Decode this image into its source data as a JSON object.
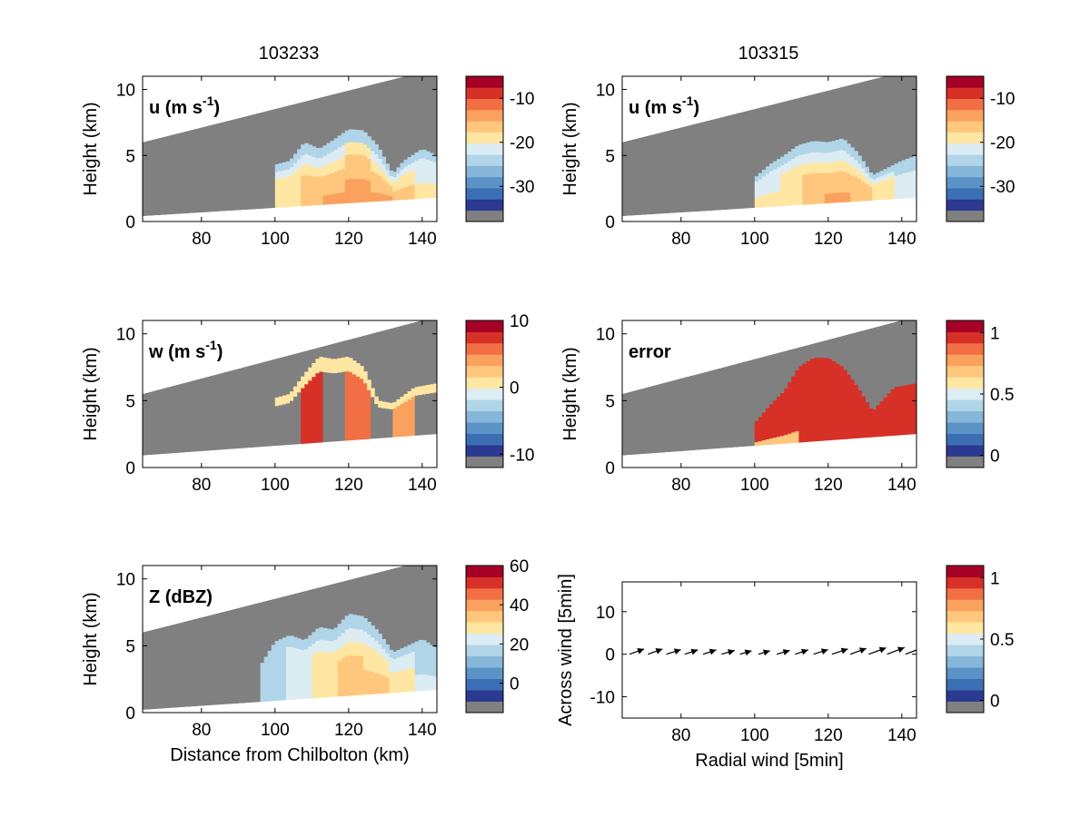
{
  "colors": {
    "panel_bg": "#ffffff",
    "no_data": "#808080",
    "palette": [
      "#2b3990",
      "#3c6eb4",
      "#5b93c7",
      "#86b6d9",
      "#b0d5e8",
      "#dcecf3",
      "#ffe7a3",
      "#fec77d",
      "#fba15e",
      "#f26f45",
      "#d73027",
      "#a50026"
    ]
  },
  "chart_data": [
    {
      "id": "u-103233",
      "type": "heatmap",
      "title": "103233",
      "panel_label": "u (m s-1)",
      "panel_label_base": "u (m s",
      "panel_label_sup": "-1",
      "panel_label_tail": ")",
      "xlabel": "",
      "ylabel": "Height (km)",
      "xlim": [
        64,
        144
      ],
      "ylim": [
        0,
        11
      ],
      "xticks": [
        "80",
        "100",
        "120",
        "140"
      ],
      "yticks": [
        "0",
        "5",
        "10"
      ],
      "colorbar": {
        "range": [
          -38,
          -5
        ],
        "ticks": [
          "-10",
          "-20",
          "-30"
        ]
      },
      "beam_top_km": [
        [
          64,
          6.0
        ],
        [
          144,
          11.6
        ]
      ],
      "beam_bottom_km": [
        [
          64,
          0.4
        ],
        [
          144,
          1.8
        ]
      ],
      "echo_top_km": [
        [
          100,
          4.3
        ],
        [
          104,
          4.6
        ],
        [
          108,
          6.0
        ],
        [
          112,
          5.5
        ],
        [
          116,
          6.2
        ],
        [
          120,
          7.0
        ],
        [
          124,
          6.9
        ],
        [
          128,
          5.7
        ],
        [
          132,
          3.6
        ],
        [
          135,
          4.6
        ],
        [
          140,
          5.5
        ],
        [
          144,
          5.0
        ]
      ],
      "core_values": [
        -18,
        -16,
        -15,
        -14,
        -15,
        -17,
        -20
      ]
    },
    {
      "id": "u-103315",
      "type": "heatmap",
      "title": "103315",
      "panel_label": "u (m s-1)",
      "panel_label_base": "u (m s",
      "panel_label_sup": "-1",
      "panel_label_tail": ")",
      "xlabel": "",
      "ylabel": "Height (km)",
      "xlim": [
        64,
        144
      ],
      "ylim": [
        0,
        11
      ],
      "xticks": [
        "80",
        "100",
        "120",
        "140"
      ],
      "yticks": [
        "0",
        "5",
        "10"
      ],
      "colorbar": {
        "range": [
          -38,
          -5
        ],
        "ticks": [
          "-10",
          "-20",
          "-30"
        ]
      },
      "beam_top_km": [
        [
          64,
          6.0
        ],
        [
          144,
          11.6
        ]
      ],
      "beam_bottom_km": [
        [
          64,
          0.4
        ],
        [
          144,
          1.8
        ]
      ],
      "echo_top_km": [
        [
          100,
          3.3
        ],
        [
          104,
          4.3
        ],
        [
          108,
          5.0
        ],
        [
          112,
          5.8
        ],
        [
          116,
          6.1
        ],
        [
          120,
          6.0
        ],
        [
          124,
          6.3
        ],
        [
          128,
          5.2
        ],
        [
          132,
          3.5
        ],
        [
          135,
          3.9
        ],
        [
          140,
          4.6
        ],
        [
          144,
          5.0
        ]
      ],
      "core_values": [
        -20,
        -18,
        -16,
        -15,
        -16,
        -18,
        -21
      ]
    },
    {
      "id": "w-103233",
      "type": "heatmap",
      "panel_label": "w (m s-1)",
      "panel_label_base": "w (m s",
      "panel_label_sup": "-1",
      "panel_label_tail": ")",
      "xlabel": "",
      "ylabel": "Height (km)",
      "xlim": [
        64,
        144
      ],
      "ylim": [
        0,
        11
      ],
      "xticks": [
        "80",
        "100",
        "120",
        "140"
      ],
      "yticks": [
        "0",
        "5",
        "10"
      ],
      "colorbar": {
        "range": [
          -12,
          10
        ],
        "ticks": [
          "10",
          "0",
          "-10"
        ]
      },
      "beam_top_km": [
        [
          64,
          5.5
        ],
        [
          144,
          11.3
        ]
      ],
      "beam_bottom_km": [
        [
          64,
          0.9
        ],
        [
          144,
          2.5
        ]
      ],
      "echo_top_km": [
        [
          100,
          5.2
        ],
        [
          104,
          5.5
        ],
        [
          108,
          7.0
        ],
        [
          112,
          8.3
        ],
        [
          116,
          8.1
        ],
        [
          120,
          8.3
        ],
        [
          124,
          7.5
        ],
        [
          128,
          5.0
        ],
        [
          132,
          4.8
        ],
        [
          138,
          6.0
        ],
        [
          144,
          6.3
        ]
      ],
      "core_values": [
        -12,
        8,
        -12,
        6,
        -12,
        4,
        -12
      ]
    },
    {
      "id": "error-panel",
      "type": "heatmap",
      "panel_label": "error",
      "xlabel": "",
      "ylabel": "Height (km)",
      "xlim": [
        64,
        144
      ],
      "ylim": [
        0,
        11
      ],
      "xticks": [
        "80",
        "100",
        "120",
        "140"
      ],
      "yticks": [
        "0",
        "5",
        "10"
      ],
      "colorbar": {
        "range": [
          -0.1,
          1.1
        ],
        "ticks": [
          "1",
          "0.5",
          "0"
        ]
      },
      "beam_top_km": [
        [
          64,
          5.5
        ],
        [
          144,
          11.3
        ]
      ],
      "beam_bottom_km": [
        [
          64,
          0.9
        ],
        [
          144,
          2.5
        ]
      ],
      "echo_top_km": [
        [
          100,
          3.3
        ],
        [
          104,
          4.6
        ],
        [
          108,
          5.7
        ],
        [
          112,
          7.5
        ],
        [
          116,
          8.2
        ],
        [
          120,
          8.2
        ],
        [
          124,
          7.5
        ],
        [
          128,
          6.0
        ],
        [
          132,
          4.2
        ],
        [
          138,
          6.0
        ],
        [
          144,
          6.3
        ]
      ],
      "core_values": [
        1,
        1,
        1,
        1,
        1,
        1,
        1
      ]
    },
    {
      "id": "z-103233",
      "type": "heatmap",
      "panel_label": "Z (dBZ)",
      "xlabel": "Distance from Chilbolton (km)",
      "ylabel": "Height (km)",
      "xlim": [
        64,
        144
      ],
      "ylim": [
        0,
        11
      ],
      "xticks": [
        "80",
        "100",
        "120",
        "140"
      ],
      "yticks": [
        "0",
        "5",
        "10"
      ],
      "colorbar": {
        "range": [
          -15,
          60
        ],
        "ticks": [
          "60",
          "40",
          "20",
          "0"
        ]
      },
      "beam_top_km": [
        [
          64,
          6.0
        ],
        [
          144,
          11.6
        ]
      ],
      "beam_bottom_km": [
        [
          64,
          0.2
        ],
        [
          144,
          1.7
        ]
      ],
      "echo_top_km": [
        [
          96,
          3.5
        ],
        [
          100,
          5.3
        ],
        [
          104,
          5.8
        ],
        [
          108,
          5.4
        ],
        [
          112,
          6.4
        ],
        [
          116,
          6.2
        ],
        [
          120,
          7.4
        ],
        [
          124,
          7.2
        ],
        [
          128,
          6.1
        ],
        [
          132,
          4.5
        ],
        [
          136,
          5.0
        ],
        [
          140,
          5.5
        ],
        [
          144,
          4.8
        ]
      ],
      "core_values": [
        18,
        25,
        30,
        34,
        32,
        28,
        20
      ]
    },
    {
      "id": "wind-vectors",
      "type": "quiver",
      "xlabel": "Radial wind [5min]",
      "ylabel": "Across wind [5min]",
      "xlim": [
        64,
        144
      ],
      "ylim": [
        -15,
        17
      ],
      "xticks": [
        "80",
        "100",
        "120",
        "140"
      ],
      "yticks": [
        "10",
        "0",
        "-10"
      ],
      "colorbar": {
        "range": [
          -0.1,
          1.1
        ],
        "ticks": [
          "1",
          "0.5",
          "0"
        ]
      },
      "x": [
        66,
        71,
        76,
        81,
        86,
        91,
        96,
        101,
        106,
        111,
        116,
        121,
        126,
        131,
        136,
        141
      ],
      "u": [
        5,
        5,
        5,
        4.5,
        4.5,
        4.5,
        4,
        4,
        4.5,
        4.5,
        5,
        5.5,
        5.5,
        6,
        6,
        6.5
      ],
      "v": [
        1.8,
        1.8,
        1.6,
        1.5,
        1.5,
        1.3,
        1.2,
        1.2,
        1.3,
        1.5,
        1.6,
        1.8,
        2.0,
        2.2,
        2.3,
        2.5
      ]
    }
  ]
}
